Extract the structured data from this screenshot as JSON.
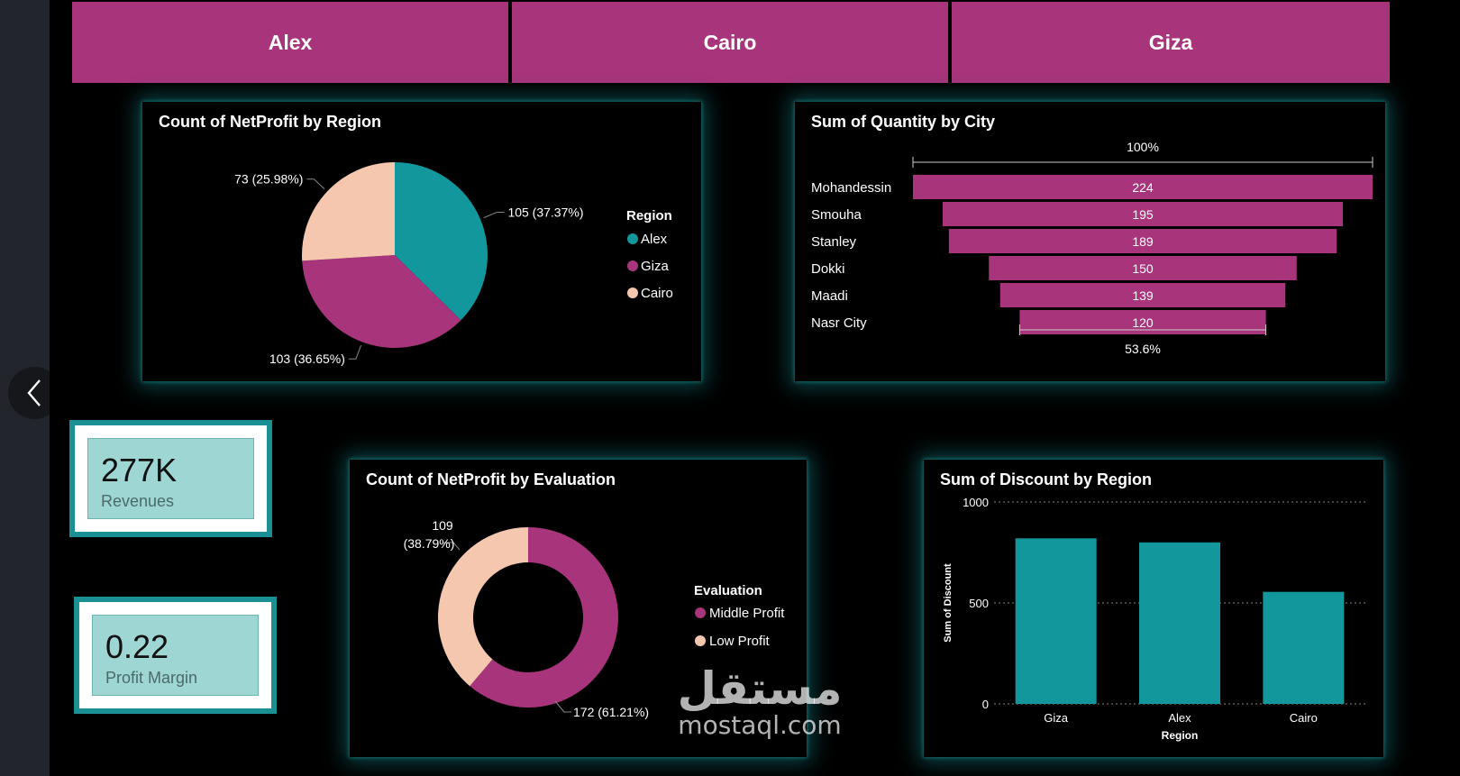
{
  "slicers": [
    "Alex",
    "Cairo",
    "Giza"
  ],
  "charts": {
    "region_pie": {
      "type": "pie",
      "title": "Count of NetProfit by Region",
      "legend_title": "Region",
      "legend_position": "right",
      "slices": [
        {
          "name": "Alex",
          "value": 105,
          "label": "105 (37.37%)",
          "color": "#11979c"
        },
        {
          "name": "Giza",
          "value": 103,
          "label": "103 (36.65%)",
          "color": "#a8347b"
        },
        {
          "name": "Cairo",
          "value": 73,
          "label": "73 (25.98%)",
          "color": "#f5c7ae"
        }
      ]
    },
    "city_funnel": {
      "type": "bar",
      "subtype": "funnel",
      "title": "Sum of Quantity by City",
      "top_label": "100%",
      "bottom_label": "53.6%",
      "color": "#a8347b",
      "categories": [
        "Mohandessin",
        "Smouha",
        "Stanley",
        "Dokki",
        "Maadi",
        "Nasr City"
      ],
      "values": [
        224,
        195,
        189,
        150,
        139,
        120
      ]
    },
    "evaluation_donut": {
      "type": "pie",
      "subtype": "donut",
      "title": "Count of NetProfit by Evaluation",
      "legend_title": "Evaluation",
      "legend_position": "right",
      "slices": [
        {
          "name": "Middle Profit",
          "value": 172,
          "label": "172 (61.21%)",
          "color": "#a8347b"
        },
        {
          "name": "Low Profit",
          "value": 109,
          "label_line1": "109",
          "label_line2": "(38.79%)",
          "color": "#f5c7ae"
        }
      ]
    },
    "discount_bar": {
      "type": "bar",
      "title": "Sum of Discount by Region",
      "xlabel": "Region",
      "ylabel": "Sum of Discount",
      "ylim": [
        0,
        1000
      ],
      "yticks": [
        0,
        500,
        1000
      ],
      "grid": true,
      "color": "#11979c",
      "categories": [
        "Giza",
        "Alex",
        "Cairo"
      ],
      "values": [
        820,
        800,
        555
      ]
    }
  },
  "cards": {
    "revenues": {
      "value": "277K",
      "label": "Revenues"
    },
    "profit_margin": {
      "value": "0.22",
      "label": "Profit Margin"
    }
  },
  "watermark": {
    "arabic": "مستقل",
    "latin": "mostaql.com"
  },
  "nav": {
    "back_icon": "chevron-left-icon"
  }
}
